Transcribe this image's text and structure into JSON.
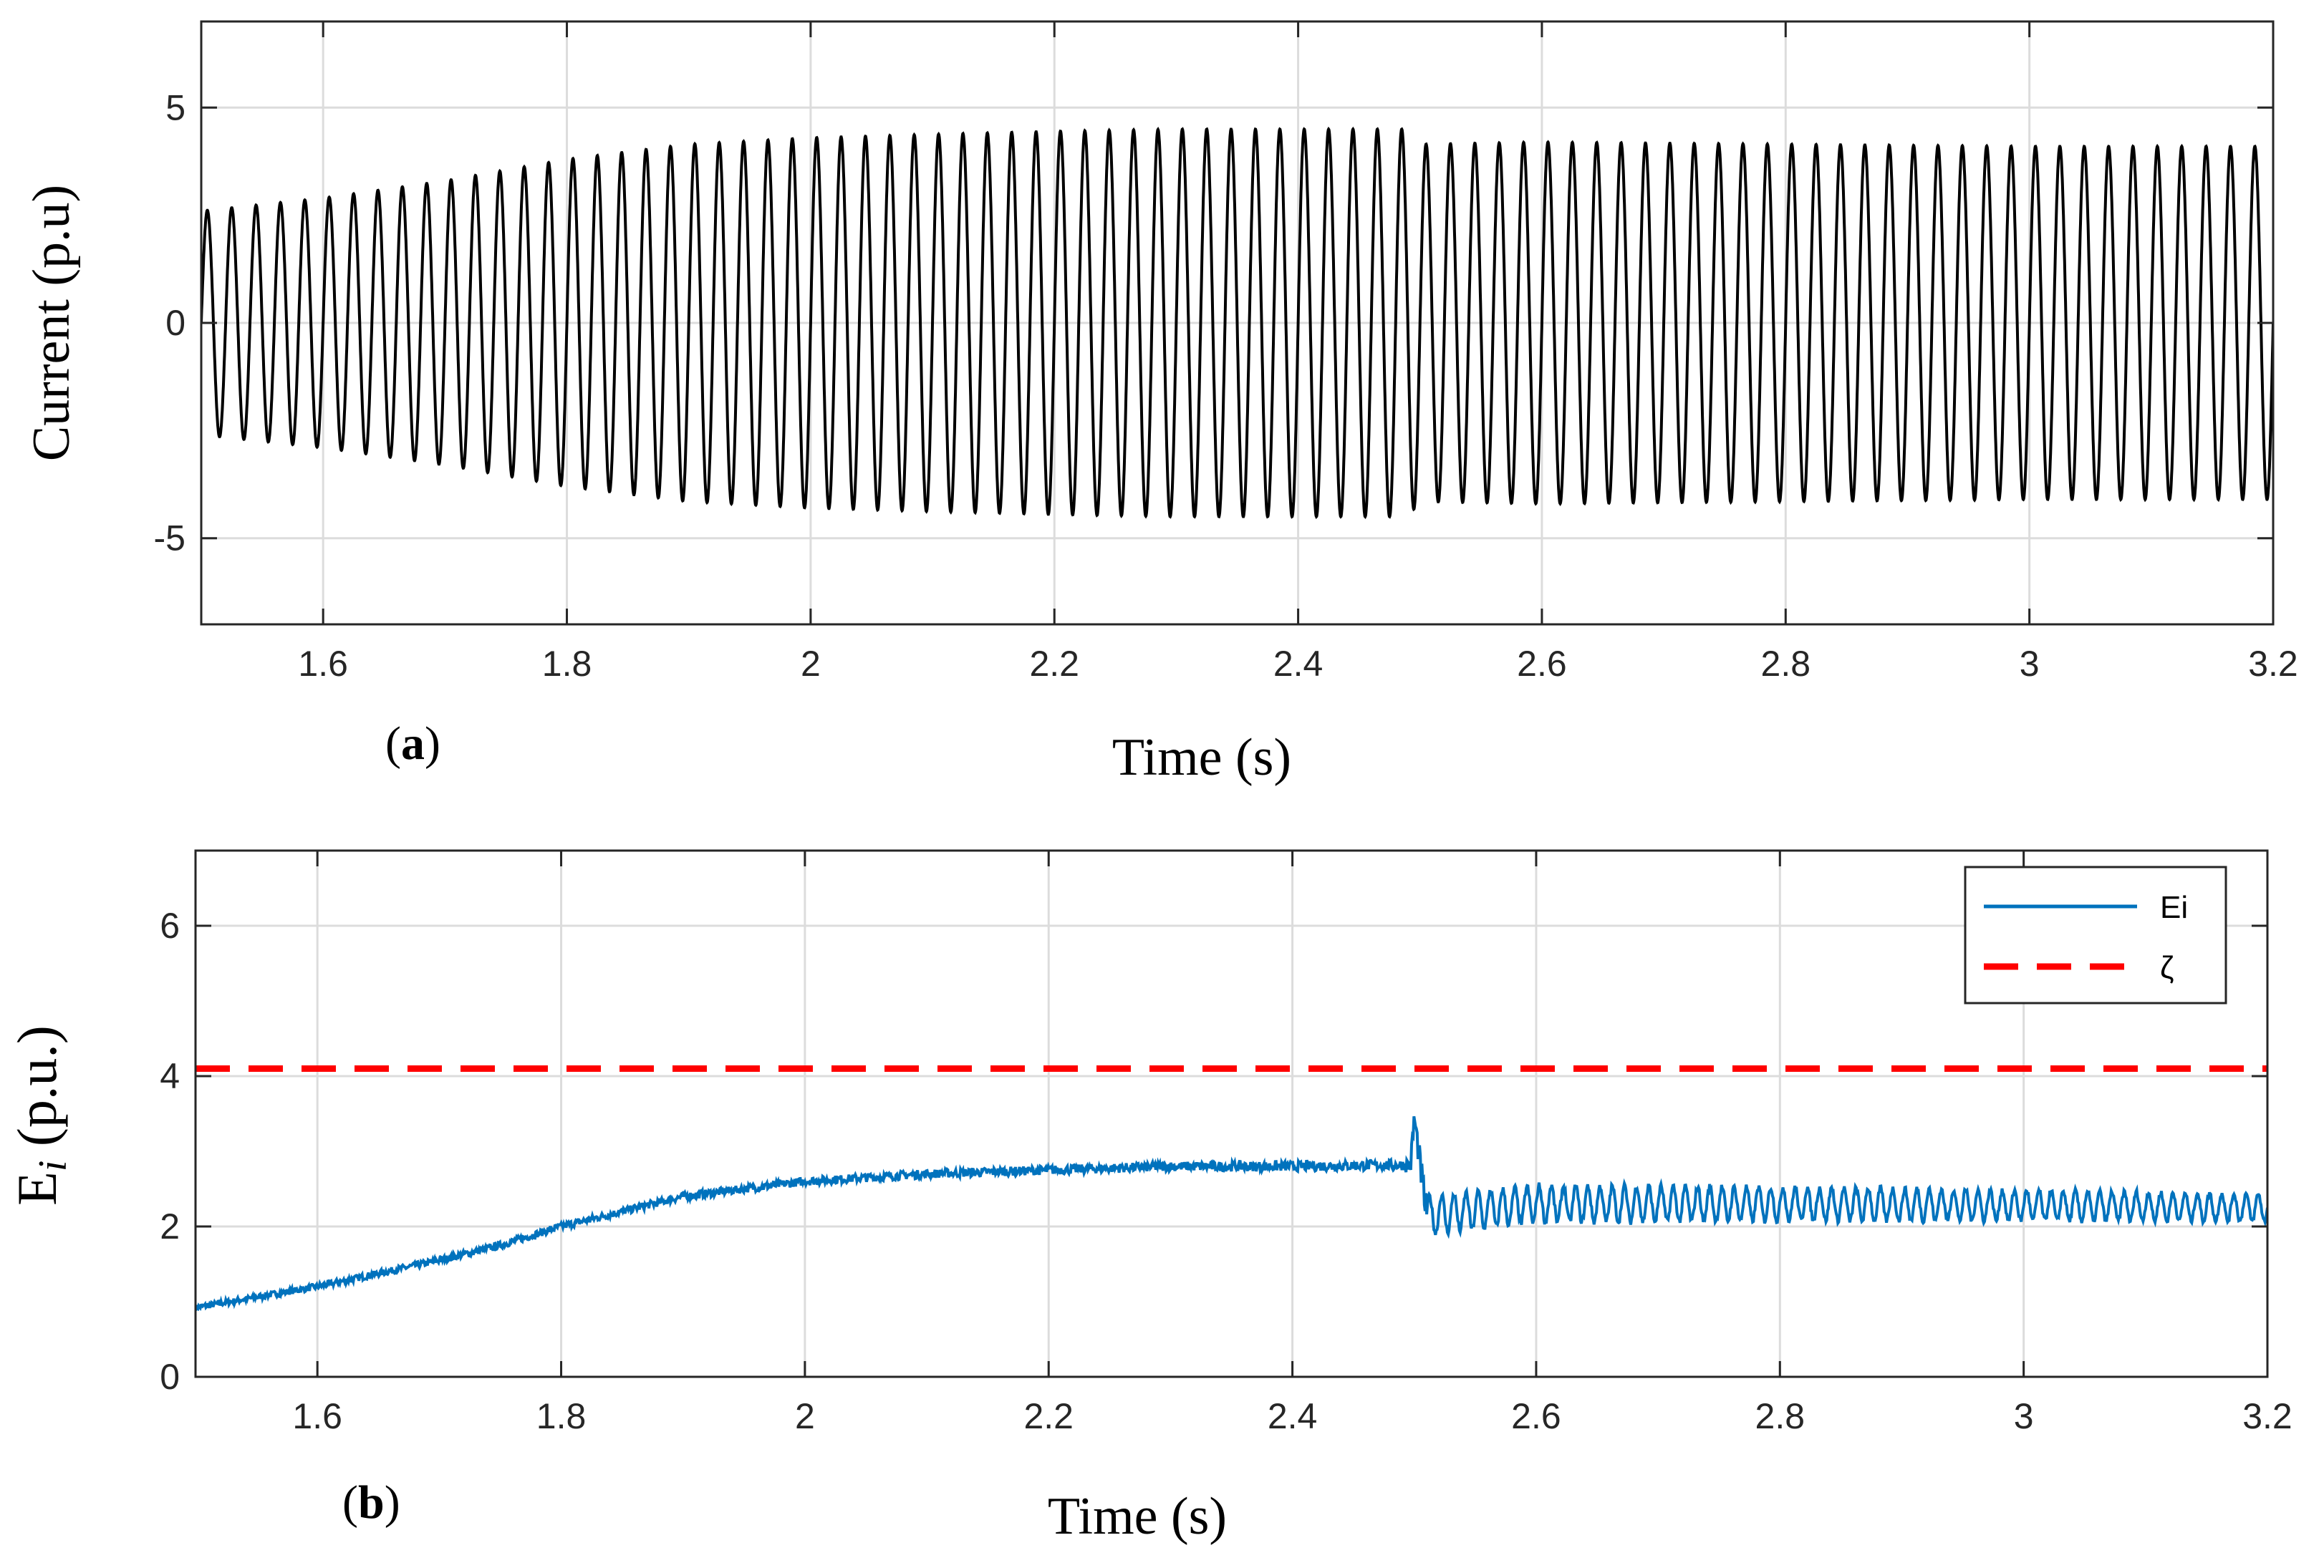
{
  "chart_data": [
    {
      "type": "line",
      "panel_label": "a",
      "xlabel": "Time (s)",
      "ylabel": "Current (p.u)",
      "xlim": [
        1.5,
        3.2
      ],
      "ylim": [
        -7,
        7
      ],
      "xticks": [
        1.6,
        1.8,
        2.0,
        2.2,
        2.4,
        2.6,
        2.8,
        3.0,
        3.2
      ],
      "xtick_labels": [
        "1.6",
        "1.8",
        "2",
        "2.2",
        "2.4",
        "2.6",
        "2.8",
        "3",
        "3.2"
      ],
      "yticks": [
        -5,
        0,
        5
      ],
      "ytick_labels": [
        "-5",
        "0",
        "5"
      ],
      "grid": true,
      "series": [
        {
          "name": "Current",
          "color": "#000000",
          "kind": "sinusoid",
          "frequency_hz": 50,
          "amplitude_envelope": {
            "t": [
              1.5,
              1.6,
              1.7,
              1.8,
              1.9,
              2.0,
              2.1,
              2.2,
              2.3,
              2.4,
              2.49,
              2.5,
              2.6,
              2.8,
              3.0,
              3.2
            ],
            "amp": [
              2.6,
              2.9,
              3.3,
              3.8,
              4.15,
              4.3,
              4.38,
              4.45,
              4.5,
              4.5,
              4.5,
              4.15,
              4.2,
              4.15,
              4.1,
              4.1
            ]
          }
        }
      ]
    },
    {
      "type": "line",
      "panel_label": "b",
      "xlabel": "Time (s)",
      "ylabel": "E",
      "ylabel_subscript": "i",
      "ylabel_suffix": " (p.u.)",
      "xlim": [
        1.5,
        3.2
      ],
      "ylim": [
        0,
        7
      ],
      "xticks": [
        1.6,
        1.8,
        2.0,
        2.2,
        2.4,
        2.6,
        2.8,
        3.0,
        3.2
      ],
      "xtick_labels": [
        "1.6",
        "1.8",
        "2",
        "2.2",
        "2.4",
        "2.6",
        "2.8",
        "3",
        "3.2"
      ],
      "yticks": [
        0,
        2,
        4,
        6
      ],
      "ytick_labels": [
        "0",
        "2",
        "4",
        "6"
      ],
      "grid": true,
      "legend": {
        "placement": "top-right",
        "entries": [
          "Ei",
          "ζ"
        ]
      },
      "series": [
        {
          "name": "Ei",
          "color": "#0072BD",
          "style": "solid",
          "baseline": {
            "t": [
              1.5,
              1.6,
              1.7,
              1.75,
              1.8,
              1.9,
              2.0,
              2.1,
              2.2,
              2.3,
              2.4,
              2.497,
              2.5,
              2.51,
              2.6,
              2.8,
              3.0,
              3.2
            ],
            "y": [
              0.92,
              1.2,
              1.55,
              1.75,
              2.0,
              2.4,
              2.6,
              2.7,
              2.75,
              2.8,
              2.8,
              2.82,
              3.45,
              2.15,
              2.3,
              2.3,
              2.28,
              2.25
            ]
          },
          "ripple_amplitude": {
            "t": [
              1.5,
              2.49,
              2.51,
              3.2
            ],
            "amp": [
              0.04,
              0.07,
              0.25,
              0.18
            ]
          }
        },
        {
          "name": "ζ",
          "color": "#FF0000",
          "style": "dashed",
          "constant": 4.1
        }
      ]
    }
  ]
}
